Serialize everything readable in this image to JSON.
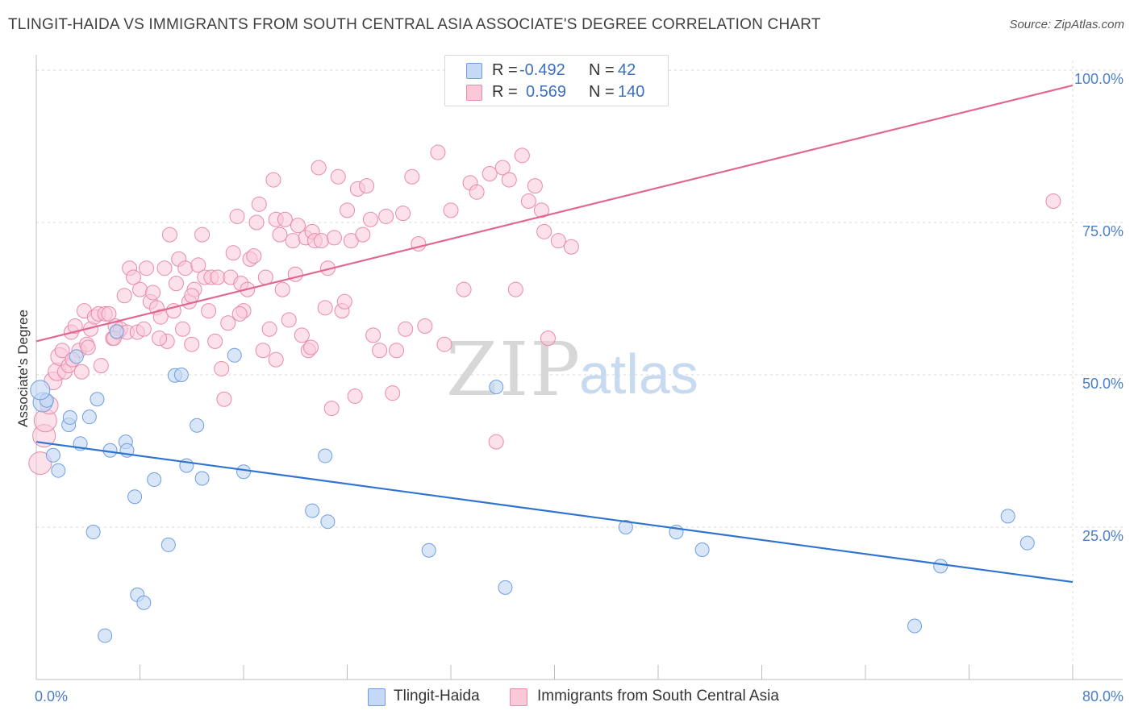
{
  "title": "TLINGIT-HAIDA VS IMMIGRANTS FROM SOUTH CENTRAL ASIA ASSOCIATE'S DEGREE CORRELATION CHART",
  "source": "Source: ZipAtlas.com",
  "watermark": {
    "zip": "ZIP",
    "atlas": "atlas"
  },
  "legend": {
    "r_label": "R =",
    "n_label": "N =",
    "rows": [
      {
        "r": "-0.492",
        "n": "42",
        "fill": "#c5d8f5",
        "stroke": "#6f9ee0"
      },
      {
        "r": "0.569",
        "n": "140",
        "fill": "#f9c9d8",
        "stroke": "#e88aa8"
      }
    ]
  },
  "bottom_legend": [
    "Tlingit-Haida",
    "Immigrants from South Central Asia"
  ],
  "colors": {
    "blue_fill": "#c5d8f5",
    "blue_stroke": "#6f9ee0",
    "blue_line": "#2f74d0",
    "pink_fill": "#f9c9d8",
    "pink_stroke": "#e88aa8",
    "pink_line": "#e06890",
    "grid": "#d9d9d9",
    "axis_text": "#4a7fc8"
  },
  "chart_data": {
    "type": "scatter",
    "title": "TLINGIT-HAIDA VS IMMIGRANTS FROM SOUTH CENTRAL ASIA ASSOCIATE'S DEGREE CORRELATION CHART",
    "xlabel": "",
    "ylabel": "Associate's Degree",
    "xlim": [
      0,
      80
    ],
    "ylim": [
      0,
      100
    ],
    "x_tick_labels": [
      "0.0%",
      "80.0%"
    ],
    "y_ticks": [
      25,
      50,
      75,
      100
    ],
    "y_tick_labels": [
      "25.0%",
      "50.0%",
      "75.0%",
      "100.0%"
    ],
    "grid": true,
    "legend_position": "top-center",
    "series": [
      {
        "name": "Tlingit-Haida",
        "r": -0.492,
        "n": 42,
        "trend": {
          "x": [
            0,
            80
          ],
          "y": [
            39.0,
            16.0
          ]
        },
        "points": [
          [
            0.5,
            45.5
          ],
          [
            0.8,
            45.8
          ],
          [
            1.3,
            36.8
          ],
          [
            1.7,
            34.3
          ],
          [
            2.5,
            41.8
          ],
          [
            2.6,
            43.0
          ],
          [
            3.1,
            53.0
          ],
          [
            3.4,
            38.7
          ],
          [
            4.1,
            43.1
          ],
          [
            4.4,
            24.2
          ],
          [
            4.7,
            46.0
          ],
          [
            5.3,
            7.2
          ],
          [
            5.7,
            37.6
          ],
          [
            6.2,
            57.1
          ],
          [
            6.9,
            39.0
          ],
          [
            7.0,
            37.6
          ],
          [
            7.6,
            30.0
          ],
          [
            7.8,
            13.9
          ],
          [
            8.3,
            12.6
          ],
          [
            9.1,
            32.8
          ],
          [
            10.2,
            22.1
          ],
          [
            10.7,
            49.9
          ],
          [
            11.2,
            50.0
          ],
          [
            11.6,
            35.1
          ],
          [
            12.4,
            41.7
          ],
          [
            12.8,
            33.0
          ],
          [
            15.3,
            53.2
          ],
          [
            16.0,
            34.1
          ],
          [
            21.3,
            27.7
          ],
          [
            22.3,
            36.7
          ],
          [
            22.5,
            25.9
          ],
          [
            30.3,
            21.2
          ],
          [
            35.5,
            48.0
          ],
          [
            36.2,
            15.1
          ],
          [
            45.5,
            25.0
          ],
          [
            49.4,
            24.2
          ],
          [
            51.4,
            21.3
          ],
          [
            67.8,
            8.8
          ],
          [
            69.8,
            18.6
          ],
          [
            75.0,
            26.8
          ],
          [
            76.5,
            22.4
          ],
          [
            0.3,
            47.5
          ]
        ]
      },
      {
        "name": "Immigrants from South Central Asia",
        "r": 0.569,
        "n": 140,
        "trend": {
          "x": [
            0,
            80
          ],
          "y": [
            55.5,
            97.5
          ]
        },
        "points": [
          [
            0.3,
            35.5
          ],
          [
            0.6,
            40.0
          ],
          [
            0.7,
            42.5
          ],
          [
            1.0,
            45.0
          ],
          [
            1.3,
            49.0
          ],
          [
            1.6,
            50.5
          ],
          [
            1.8,
            53.0
          ],
          [
            2.0,
            54.0
          ],
          [
            2.2,
            50.5
          ],
          [
            2.5,
            51.5
          ],
          [
            2.7,
            57.0
          ],
          [
            3.0,
            58.0
          ],
          [
            3.3,
            54.0
          ],
          [
            3.5,
            50.5
          ],
          [
            3.7,
            60.5
          ],
          [
            3.9,
            55.0
          ],
          [
            4.2,
            57.5
          ],
          [
            4.5,
            59.5
          ],
          [
            4.8,
            60.0
          ],
          [
            5.0,
            51.5
          ],
          [
            5.3,
            60.0
          ],
          [
            5.6,
            60.0
          ],
          [
            5.9,
            56.0
          ],
          [
            6.1,
            58.0
          ],
          [
            6.3,
            57.0
          ],
          [
            6.5,
            57.5
          ],
          [
            6.8,
            63.0
          ],
          [
            7.0,
            57.0
          ],
          [
            7.2,
            67.5
          ],
          [
            7.5,
            66.0
          ],
          [
            7.8,
            57.0
          ],
          [
            8.0,
            64.0
          ],
          [
            8.3,
            57.5
          ],
          [
            8.5,
            67.5
          ],
          [
            8.8,
            62.0
          ],
          [
            9.0,
            63.5
          ],
          [
            9.3,
            61.0
          ],
          [
            9.6,
            59.5
          ],
          [
            9.9,
            67.5
          ],
          [
            10.1,
            55.5
          ],
          [
            10.3,
            73.0
          ],
          [
            10.6,
            60.5
          ],
          [
            10.8,
            65.0
          ],
          [
            11.0,
            69.0
          ],
          [
            11.3,
            57.5
          ],
          [
            11.5,
            67.5
          ],
          [
            11.8,
            62.0
          ],
          [
            12.0,
            55.0
          ],
          [
            12.2,
            64.0
          ],
          [
            12.5,
            68.0
          ],
          [
            12.8,
            73.0
          ],
          [
            13.0,
            66.0
          ],
          [
            13.3,
            60.5
          ],
          [
            13.5,
            66.0
          ],
          [
            13.8,
            55.5
          ],
          [
            14.0,
            66.0
          ],
          [
            14.3,
            51.0
          ],
          [
            14.5,
            46.0
          ],
          [
            14.8,
            58.5
          ],
          [
            15.0,
            66.0
          ],
          [
            15.2,
            70.0
          ],
          [
            15.5,
            76.0
          ],
          [
            15.8,
            65.0
          ],
          [
            16.0,
            60.5
          ],
          [
            16.3,
            64.0
          ],
          [
            16.5,
            69.0
          ],
          [
            16.8,
            69.5
          ],
          [
            17.0,
            75.0
          ],
          [
            17.2,
            78.0
          ],
          [
            17.5,
            54.0
          ],
          [
            17.7,
            66.0
          ],
          [
            18.0,
            57.5
          ],
          [
            18.3,
            82.0
          ],
          [
            18.5,
            75.5
          ],
          [
            18.8,
            73.0
          ],
          [
            19.0,
            64.0
          ],
          [
            19.2,
            75.5
          ],
          [
            19.5,
            59.0
          ],
          [
            19.8,
            72.0
          ],
          [
            20.0,
            66.5
          ],
          [
            20.2,
            74.5
          ],
          [
            20.5,
            56.5
          ],
          [
            20.8,
            72.5
          ],
          [
            21.0,
            54.0
          ],
          [
            21.3,
            73.5
          ],
          [
            21.5,
            72.0
          ],
          [
            21.8,
            84.0
          ],
          [
            22.0,
            72.0
          ],
          [
            22.3,
            61.0
          ],
          [
            22.5,
            67.5
          ],
          [
            22.8,
            44.5
          ],
          [
            23.0,
            72.5
          ],
          [
            23.3,
            82.5
          ],
          [
            23.6,
            60.5
          ],
          [
            24.0,
            77.0
          ],
          [
            24.3,
            72.0
          ],
          [
            24.6,
            46.5
          ],
          [
            24.8,
            80.5
          ],
          [
            25.2,
            73.0
          ],
          [
            25.5,
            81.0
          ],
          [
            25.8,
            75.5
          ],
          [
            26.5,
            54.0
          ],
          [
            27.0,
            76.0
          ],
          [
            27.5,
            47.0
          ],
          [
            27.8,
            54.0
          ],
          [
            28.3,
            76.5
          ],
          [
            29.0,
            82.5
          ],
          [
            29.5,
            71.5
          ],
          [
            31.0,
            86.5
          ],
          [
            32.0,
            77.0
          ],
          [
            33.0,
            64.0
          ],
          [
            33.5,
            81.5
          ],
          [
            34.0,
            80.0
          ],
          [
            35.0,
            83.0
          ],
          [
            35.5,
            39.0
          ],
          [
            36.0,
            84.0
          ],
          [
            36.5,
            82.0
          ],
          [
            37.0,
            64.0
          ],
          [
            37.5,
            86.0
          ],
          [
            38.0,
            78.5
          ],
          [
            38.5,
            81.0
          ],
          [
            39.0,
            77.0
          ],
          [
            39.2,
            73.5
          ],
          [
            39.5,
            56.0
          ],
          [
            40.3,
            72.0
          ],
          [
            41.3,
            71.0
          ],
          [
            78.5,
            78.5
          ],
          [
            2.8,
            52.5
          ],
          [
            4.0,
            54.5
          ],
          [
            6.0,
            56.0
          ],
          [
            9.5,
            56.0
          ],
          [
            12.0,
            63.0
          ],
          [
            15.7,
            60.0
          ],
          [
            18.5,
            52.5
          ],
          [
            21.2,
            54.5
          ],
          [
            23.8,
            62.0
          ],
          [
            26.0,
            56.5
          ],
          [
            28.5,
            57.5
          ],
          [
            30.0,
            58.0
          ],
          [
            31.5,
            55.0
          ]
        ]
      }
    ]
  }
}
